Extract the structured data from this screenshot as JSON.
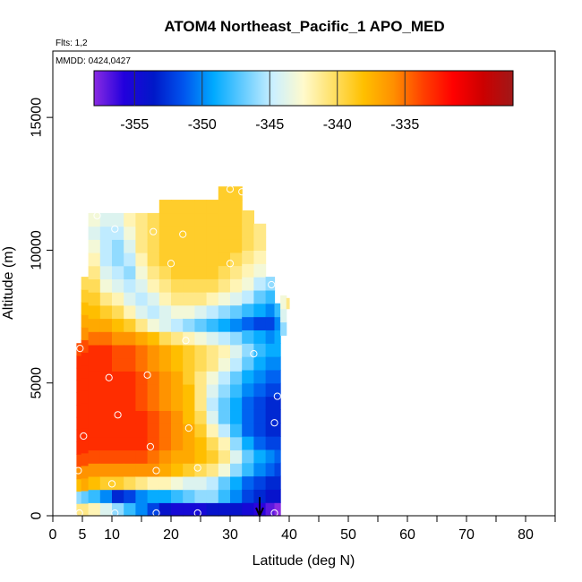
{
  "chart_data": {
    "type": "heatmap",
    "title": "ATOM4 Northeast_Pacific_1 APO_MED",
    "annotations": [
      "Flts: 1,2",
      "MMDD: 0424,0427"
    ],
    "xlabel": "Latitude (deg N)",
    "ylabel": "Altitude (m)",
    "xlim": [
      0,
      85
    ],
    "ylim": [
      0,
      17500
    ],
    "x_ticks": [
      0,
      5,
      10,
      20,
      30,
      40,
      50,
      60,
      70,
      80
    ],
    "x_minor_ticks": [
      15,
      25,
      35,
      45,
      55,
      65,
      75,
      85
    ],
    "y_ticks": [
      0,
      5000,
      10000,
      15000
    ],
    "grid": false,
    "colorbar": {
      "placement": "top, inside plot",
      "range": [
        -358,
        -327
      ],
      "ticks": [
        -355,
        -350,
        -345,
        -340,
        -335
      ],
      "colors": [
        "#8a2be2",
        "#2200dd",
        "#0018c8",
        "#0055ee",
        "#00aaff",
        "#66ccff",
        "#ccf0ff",
        "#fffacc",
        "#ffe066",
        "#ffc000",
        "#ff9000",
        "#ff4000",
        "#ff0000",
        "#cc0000",
        "#a01818"
      ]
    },
    "profiles": [
      {
        "lat_min": 4,
        "lat_max": 4.8,
        "alt_min": 0,
        "alt_max": 6500,
        "values": [
          -341,
          -346,
          -338,
          -336,
          -334,
          -333,
          -333,
          -333,
          -333,
          -333,
          -333,
          -333,
          -333,
          -334
        ]
      },
      {
        "lat_min": 4.8,
        "lat_max": 6,
        "alt_min": 0,
        "alt_max": 9000,
        "values": [
          -341,
          -347,
          -337,
          -336,
          -334,
          -333,
          -333,
          -333,
          -333,
          -333,
          -333,
          -333,
          -333,
          -334,
          -336,
          -337,
          -338,
          -339,
          -340
        ]
      },
      {
        "lat_min": 6,
        "lat_max": 8,
        "alt_min": 0,
        "alt_max": 11400,
        "values": [
          -342,
          -348,
          -338,
          -336,
          -334,
          -333,
          -333,
          -333,
          -333,
          -333,
          -333,
          -333,
          -333,
          -335,
          -337,
          -338,
          -339,
          -340,
          -341,
          -342,
          -343,
          -344,
          -343
        ]
      },
      {
        "lat_min": 8,
        "lat_max": 10,
        "alt_min": 0,
        "alt_max": 11400,
        "values": [
          -344,
          -350,
          -339,
          -336,
          -334,
          -333,
          -333,
          -333,
          -333,
          -333,
          -333,
          -333,
          -333,
          -335,
          -337,
          -339,
          -341,
          -343,
          -344,
          -345,
          -345,
          -345,
          -344
        ]
      },
      {
        "lat_min": 10,
        "lat_max": 12,
        "alt_min": 0,
        "alt_max": 11400,
        "values": [
          -346,
          -353,
          -339,
          -336,
          -334,
          -333,
          -333,
          -333,
          -333,
          -333,
          -333,
          -334,
          -334,
          -336,
          -338,
          -340,
          -342,
          -344,
          -345,
          -346,
          -346,
          -345,
          -344
        ]
      },
      {
        "lat_min": 12,
        "lat_max": 14,
        "alt_min": 0,
        "alt_max": 11400,
        "values": [
          -348,
          -352,
          -340,
          -336,
          -334,
          -333,
          -333,
          -333,
          -333,
          -333,
          -333,
          -334,
          -334,
          -336,
          -339,
          -342,
          -344,
          -345,
          -346,
          -345,
          -344,
          -343,
          -342
        ]
      },
      {
        "lat_min": 14,
        "lat_max": 16,
        "alt_min": 0,
        "alt_max": 11400,
        "values": [
          -350,
          -350,
          -341,
          -336,
          -334,
          -333,
          -333,
          -333,
          -334,
          -334,
          -334,
          -335,
          -335,
          -337,
          -341,
          -344,
          -345,
          -344,
          -343,
          -342,
          -341,
          -341,
          -341
        ]
      },
      {
        "lat_min": 16,
        "lat_max": 18,
        "alt_min": 0,
        "alt_max": 11400,
        "values": [
          -352,
          -349,
          -342,
          -336,
          -335,
          -334,
          -334,
          -334,
          -335,
          -335,
          -335,
          -336,
          -336,
          -338,
          -343,
          -345,
          -344,
          -342,
          -341,
          -340,
          -340,
          -340,
          -340
        ]
      },
      {
        "lat_min": 18,
        "lat_max": 20,
        "alt_min": 0,
        "alt_max": 11900,
        "values": [
          -354,
          -349,
          -342,
          -337,
          -336,
          -335,
          -335,
          -335,
          -336,
          -336,
          -336,
          -337,
          -337,
          -340,
          -344,
          -344,
          -342,
          -341,
          -340,
          -339,
          -339,
          -339,
          -339,
          -339
        ]
      },
      {
        "lat_min": 20,
        "lat_max": 22,
        "alt_min": 0,
        "alt_max": 11900,
        "values": [
          -355,
          -348,
          -343,
          -338,
          -337,
          -336,
          -336,
          -336,
          -337,
          -337,
          -337,
          -338,
          -338,
          -341,
          -345,
          -343,
          -341,
          -340,
          -339,
          -339,
          -339,
          -339,
          -339,
          -339
        ]
      },
      {
        "lat_min": 22,
        "lat_max": 24,
        "alt_min": 0,
        "alt_max": 11900,
        "values": [
          -355,
          -347,
          -344,
          -339,
          -337,
          -337,
          -337,
          -338,
          -338,
          -338,
          -339,
          -339,
          -339,
          -342,
          -346,
          -343,
          -341,
          -340,
          -339,
          -339,
          -339,
          -339,
          -339,
          -339
        ]
      },
      {
        "lat_min": 24,
        "lat_max": 26,
        "alt_min": 0,
        "alt_max": 11900,
        "values": [
          -355,
          -346,
          -344,
          -340,
          -338,
          -338,
          -339,
          -340,
          -341,
          -341,
          -341,
          -340,
          -340,
          -343,
          -347,
          -344,
          -341,
          -340,
          -339,
          -339,
          -339,
          -339,
          -339,
          -339
        ]
      },
      {
        "lat_min": 26,
        "lat_max": 28,
        "alt_min": 0,
        "alt_max": 11900,
        "values": [
          -354,
          -346,
          -345,
          -341,
          -339,
          -340,
          -342,
          -344,
          -345,
          -344,
          -343,
          -341,
          -341,
          -344,
          -348,
          -345,
          -342,
          -340,
          -339,
          -339,
          -339,
          -339,
          -339,
          -339
        ]
      },
      {
        "lat_min": 28,
        "lat_max": 30,
        "alt_min": 0,
        "alt_max": 12400,
        "values": [
          -354,
          -348,
          -347,
          -343,
          -341,
          -342,
          -345,
          -347,
          -347,
          -346,
          -345,
          -343,
          -342,
          -345,
          -349,
          -346,
          -343,
          -341,
          -340,
          -339,
          -339,
          -339,
          -339,
          -339,
          -339
        ]
      },
      {
        "lat_min": 30,
        "lat_max": 32,
        "alt_min": 0,
        "alt_max": 12400,
        "values": [
          -354,
          -350,
          -349,
          -346,
          -344,
          -346,
          -348,
          -349,
          -349,
          -348,
          -347,
          -345,
          -344,
          -346,
          -350,
          -347,
          -344,
          -342,
          -341,
          -340,
          -339,
          -339,
          -339,
          -339,
          -339
        ]
      },
      {
        "lat_min": 32,
        "lat_max": 34,
        "alt_min": 0,
        "alt_max": 11500,
        "values": [
          -355,
          -352,
          -351,
          -348,
          -347,
          -349,
          -351,
          -351,
          -351,
          -350,
          -349,
          -347,
          -346,
          -348,
          -351,
          -348,
          -345,
          -343,
          -342,
          -341,
          -340,
          -340,
          -340
        ]
      },
      {
        "lat_min": 34,
        "lat_max": 36,
        "alt_min": 0,
        "alt_max": 11000,
        "values": [
          -356,
          -353,
          -352,
          -350,
          -349,
          -351,
          -352,
          -352,
          -352,
          -351,
          -350,
          -349,
          -348,
          -349,
          -352,
          -349,
          -347,
          -345,
          -343,
          -342,
          -341,
          -341
        ]
      },
      {
        "lat_min": 36,
        "lat_max": 37.5,
        "alt_min": 0,
        "alt_max": 9000,
        "values": [
          -357,
          -354,
          -353,
          -351,
          -350,
          -352,
          -353,
          -353,
          -353,
          -352,
          -351,
          -350,
          -349,
          -350,
          -352,
          -350,
          -348,
          -346
        ]
      },
      {
        "lat_min": 37.5,
        "lat_max": 38.5,
        "alt_min": 0,
        "alt_max": 8000,
        "values": [
          -358,
          -354,
          -353,
          -352,
          -351,
          -352,
          -353,
          -353,
          -353,
          -352,
          -351,
          -350,
          -349,
          -349,
          -350,
          -348
        ]
      },
      {
        "lat_min": 38.5,
        "lat_max": 39.5,
        "alt_min": 6800,
        "alt_max": 8300,
        "values": [
          -346,
          -344,
          -343
        ]
      },
      {
        "lat_min": 39.5,
        "lat_max": 40,
        "alt_min": 7800,
        "alt_max": 8200,
        "values": [
          -341
        ]
      }
    ],
    "sample_points": [
      {
        "x": 4.5,
        "y": 100
      },
      {
        "x": 4.6,
        "y": 6300
      },
      {
        "x": 5.2,
        "y": 3000
      },
      {
        "x": 4.3,
        "y": 1700
      },
      {
        "x": 9.5,
        "y": 5200
      },
      {
        "x": 10,
        "y": 1200
      },
      {
        "x": 10.5,
        "y": 100
      },
      {
        "x": 11,
        "y": 3800
      },
      {
        "x": 10.5,
        "y": 10800
      },
      {
        "x": 7.5,
        "y": 11300
      },
      {
        "x": 16.5,
        "y": 2600
      },
      {
        "x": 16,
        "y": 5300
      },
      {
        "x": 17,
        "y": 10700
      },
      {
        "x": 17.5,
        "y": 1700
      },
      {
        "x": 17.5,
        "y": 100
      },
      {
        "x": 20,
        "y": 9500
      },
      {
        "x": 22,
        "y": 10600
      },
      {
        "x": 22.5,
        "y": 6600
      },
      {
        "x": 23,
        "y": 3300
      },
      {
        "x": 24.5,
        "y": 1800
      },
      {
        "x": 24.5,
        "y": 100
      },
      {
        "x": 30,
        "y": 12300
      },
      {
        "x": 32,
        "y": 12200
      },
      {
        "x": 30,
        "y": 9500
      },
      {
        "x": 34,
        "y": 6100
      },
      {
        "x": 37,
        "y": 8700
      },
      {
        "x": 37.5,
        "y": 3500
      },
      {
        "x": 38,
        "y": 4500
      },
      {
        "x": 37.5,
        "y": 100
      }
    ],
    "arrow": {
      "x": 35,
      "y_start": 700,
      "y_end": 0
    }
  }
}
